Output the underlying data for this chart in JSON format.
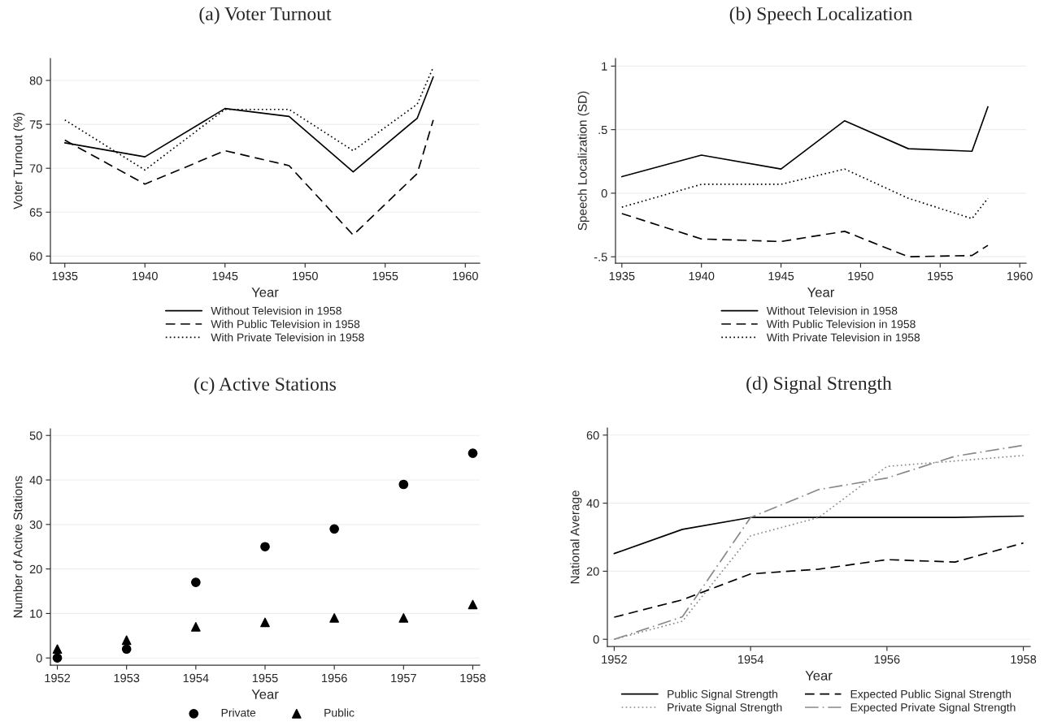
{
  "chart_data": [
    {
      "type": "line",
      "title": "(a) Voter Turnout",
      "xlabel": "Year",
      "ylabel": "Voter Turnout (%)",
      "x": [
        1935,
        1940,
        1945,
        1949,
        1953,
        1957,
        1958
      ],
      "series": [
        {
          "name": "Without Television in 1958",
          "color": "#000000",
          "line_style": "solid",
          "values": [
            72.9,
            71.3,
            76.8,
            75.9,
            69.6,
            75.7,
            80.4
          ]
        },
        {
          "name": "With Public Television in 1958",
          "color": "#000000",
          "line_style": "dashed",
          "values": [
            73.2,
            68.2,
            72.0,
            70.3,
            62.4,
            69.4,
            75.5
          ]
        },
        {
          "name": "With Private Television in 1958",
          "color": "#000000",
          "line_style": "dotted",
          "values": [
            75.5,
            69.8,
            76.7,
            76.7,
            72.0,
            77.3,
            81.5
          ]
        }
      ],
      "xlim": [
        1934.1,
        1960.9
      ],
      "xticks": [
        1935,
        1940,
        1945,
        1950,
        1955,
        1960
      ],
      "ylim": [
        59.2,
        82.5
      ],
      "yticks": [
        60,
        65,
        70,
        75,
        80
      ],
      "grid": "y",
      "legend": "bottom"
    },
    {
      "type": "line",
      "title": "(b) Speech Localization",
      "xlabel": "Year",
      "ylabel": "Speech Localization (SD)",
      "x": [
        1935,
        1940,
        1945,
        1949,
        1953,
        1957,
        1958
      ],
      "series": [
        {
          "name": "Without Television in 1958",
          "color": "#000000",
          "line_style": "solid",
          "values": [
            0.13,
            0.3,
            0.19,
            0.57,
            0.35,
            0.33,
            0.68
          ]
        },
        {
          "name": "With Public Television in 1958",
          "color": "#000000",
          "line_style": "dashed",
          "values": [
            -0.16,
            -0.36,
            -0.38,
            -0.3,
            -0.5,
            -0.49,
            -0.41
          ]
        },
        {
          "name": "With Private Television in 1958",
          "color": "#000000",
          "line_style": "dotted",
          "values": [
            -0.11,
            0.07,
            0.07,
            0.19,
            -0.04,
            -0.2,
            -0.04
          ]
        }
      ],
      "xlim": [
        1934.6,
        1960.4
      ],
      "xticks": [
        1935,
        1940,
        1945,
        1950,
        1955,
        1960
      ],
      "ylim": [
        -0.55,
        1.06
      ],
      "yticks": [
        {
          "value": -0.5,
          "label": "-.5"
        },
        0,
        {
          "value": 0.5,
          "label": ".5"
        },
        1
      ],
      "grid": "y",
      "legend": "bottom"
    },
    {
      "type": "scatter",
      "title": "(c) Active Stations",
      "xlabel": "Year",
      "ylabel": "Number of Active Stations",
      "x": [
        1952,
        1953,
        1954,
        1955,
        1956,
        1957,
        1958
      ],
      "series": [
        {
          "name": "Private",
          "color": "#000000",
          "marker": "circle",
          "values": [
            0,
            2,
            17,
            25,
            29,
            39,
            46
          ]
        },
        {
          "name": "Public",
          "color": "#000000",
          "marker": "triangle",
          "values": [
            2,
            4,
            7,
            8,
            9,
            9,
            12
          ]
        }
      ],
      "xlim": [
        1951.9,
        1958.1
      ],
      "xticks": [
        1952,
        1953,
        1954,
        1955,
        1956,
        1957,
        1958
      ],
      "ylim": [
        -1.6,
        51.5
      ],
      "yticks": [
        0,
        10,
        20,
        30,
        40,
        50
      ],
      "grid": "y",
      "legend": "bottom"
    },
    {
      "type": "line",
      "title": "(d) Signal Strength",
      "xlabel": "Year",
      "ylabel": "National Average",
      "x": [
        1952,
        1953,
        1954,
        1955,
        1956,
        1957,
        1958
      ],
      "series": [
        {
          "name": "Public Signal Strength",
          "color": "#000000",
          "line_style": "solid",
          "values": [
            25.2,
            32.3,
            35.8,
            35.8,
            35.8,
            35.8,
            36.2
          ]
        },
        {
          "name": "Private Signal Strength",
          "color": "#888888",
          "line_style": "dotted",
          "values": [
            0,
            5.3,
            30.4,
            35.8,
            50.8,
            52.4,
            54.0
          ]
        },
        {
          "name": "Expected Public Signal Strength",
          "color": "#000000",
          "line_style": "dashed",
          "values": [
            6.5,
            11.6,
            19.2,
            20.6,
            23.4,
            22.7,
            28.3
          ]
        },
        {
          "name": "Expected Private Signal Strength",
          "color": "#888888",
          "line_style": "dashdot",
          "values": [
            0,
            6.6,
            35.8,
            44.0,
            47.4,
            53.8,
            57.0
          ]
        }
      ],
      "xlim": [
        1951.9,
        1958.1
      ],
      "xticks": [
        1952,
        1954,
        1956,
        1958
      ],
      "ylim": [
        -2.1,
        62.1
      ],
      "yticks": [
        0,
        20,
        40,
        60
      ],
      "grid": "y",
      "legend": "bottom"
    }
  ]
}
